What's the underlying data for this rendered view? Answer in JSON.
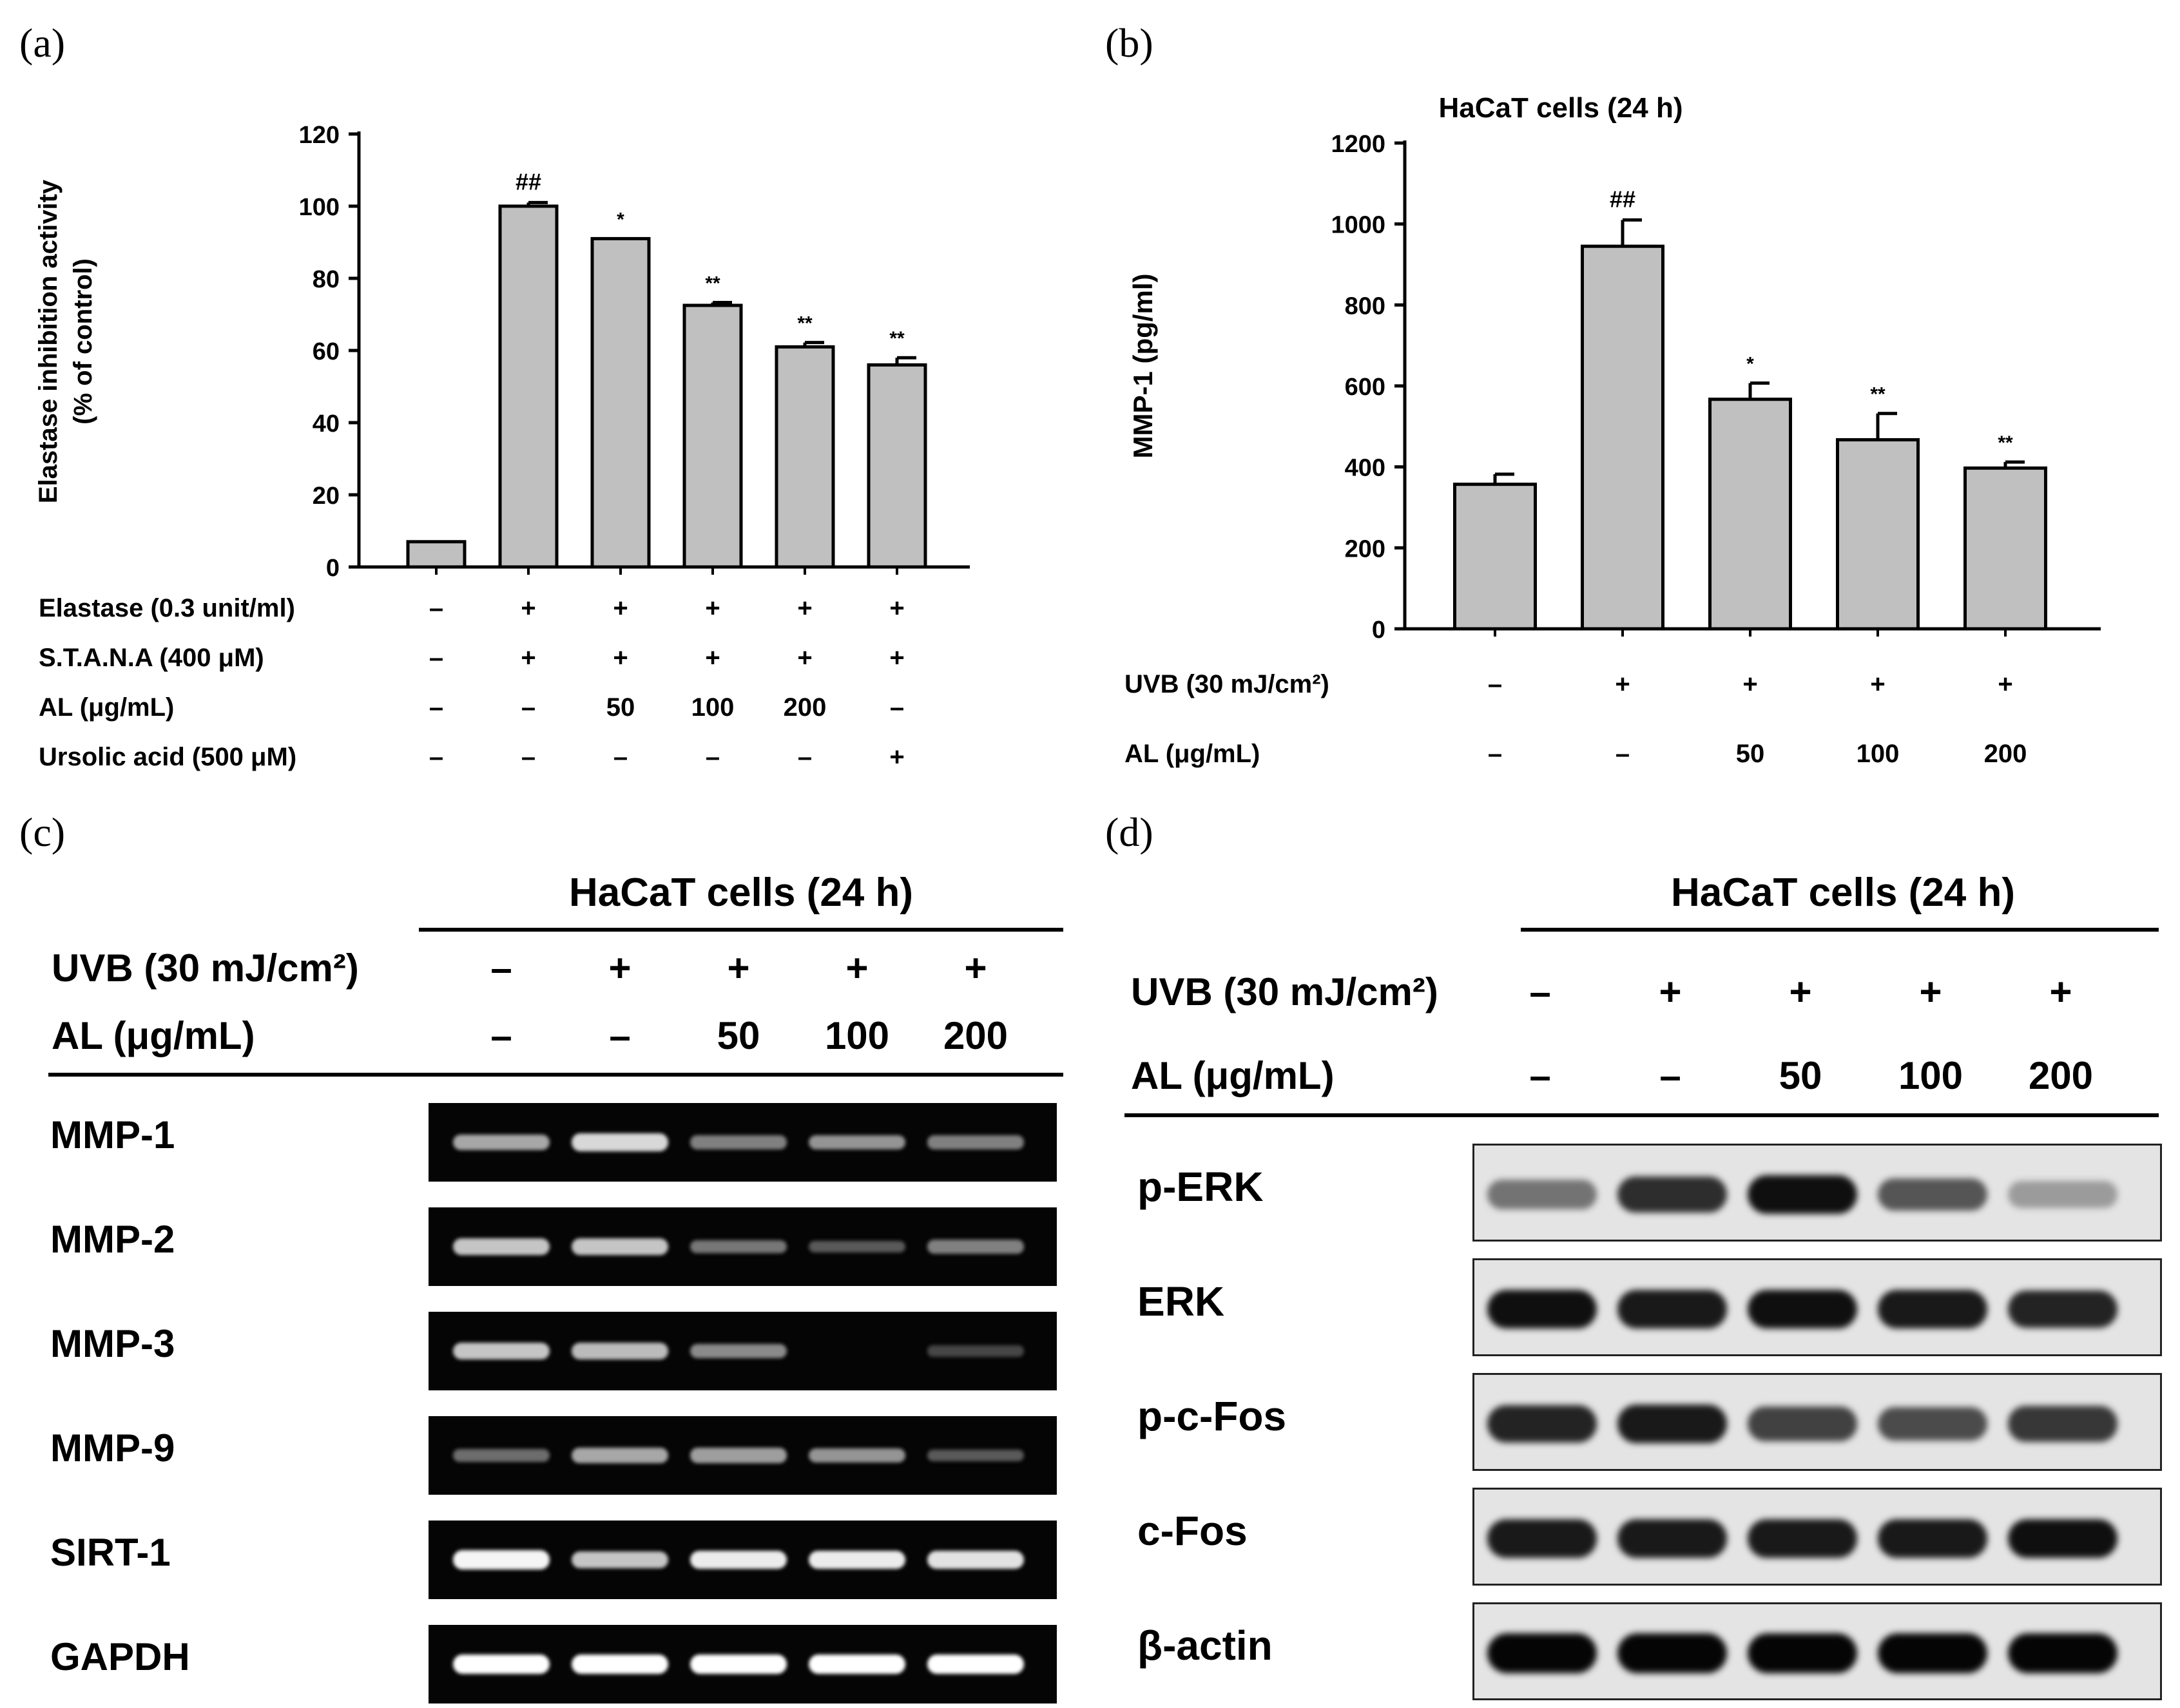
{
  "panels": {
    "a": {
      "label": "(a)"
    },
    "b": {
      "label": "(b)"
    },
    "c": {
      "label": "(c)"
    },
    "d": {
      "label": "(d)"
    }
  },
  "chart_data": [
    {
      "type": "bar",
      "panel": "a",
      "title": "",
      "ylabel_line1": "Elastase inhibition activity",
      "ylabel_line2": "(% of control)",
      "ylim": [
        0,
        120
      ],
      "yticks": [
        "0",
        "20",
        "40",
        "60",
        "80",
        "100",
        "120"
      ],
      "values": [
        7,
        100,
        91,
        72.5,
        61,
        56
      ],
      "errors": [
        0,
        1,
        0,
        0.8,
        1.2,
        2
      ],
      "annotations": [
        "",
        "##",
        "*",
        "**",
        "**",
        "**"
      ],
      "bar_color": "#c0c0c0",
      "conditions": [
        {
          "label": "Elastase (0.3 unit/ml)",
          "values": [
            "–",
            "+",
            "+",
            "+",
            "+",
            "+"
          ]
        },
        {
          "label": "S.T.A.N.A (400 μM)",
          "values": [
            "–",
            "+",
            "+",
            "+",
            "+",
            "+"
          ]
        },
        {
          "label": "AL (μg/mL)",
          "values": [
            "–",
            "–",
            "50",
            "100",
            "200",
            "–"
          ]
        },
        {
          "label": "Ursolic acid (500 μM)",
          "values": [
            "–",
            "–",
            "–",
            "–",
            "–",
            "+"
          ]
        }
      ]
    },
    {
      "type": "bar",
      "panel": "b",
      "title": "HaCaT cells (24 h)",
      "ylabel": "MMP-1 (pg/ml)",
      "ylim": [
        0,
        1200
      ],
      "yticks": [
        "0",
        "200",
        "400",
        "600",
        "800",
        "1000",
        "1200"
      ],
      "values": [
        357,
        945,
        567,
        467,
        397
      ],
      "errors": [
        25,
        65,
        40,
        65,
        15
      ],
      "annotations": [
        "",
        "##",
        "*",
        "**",
        "**"
      ],
      "bar_color": "#c0c0c0",
      "conditions": [
        {
          "label": "UVB (30 mJ/cm²)",
          "values": [
            "–",
            "+",
            "+",
            "+",
            "+"
          ]
        },
        {
          "label": "AL (μg/mL)",
          "values": [
            "–",
            "–",
            "50",
            "100",
            "200"
          ]
        }
      ]
    }
  ],
  "gel_c": {
    "title": "HaCaT cells (24 h)",
    "conditions": [
      {
        "label": "UVB (30 mJ/cm²)",
        "values": [
          "–",
          "+",
          "+",
          "+",
          "+"
        ]
      },
      {
        "label": "AL (μg/mL)",
        "values": [
          "–",
          "–",
          "50",
          "100",
          "200"
        ]
      }
    ],
    "rows": [
      {
        "label": "MMP-1",
        "intensity": [
          0.55,
          0.8,
          0.35,
          0.45,
          0.35
        ]
      },
      {
        "label": "MMP-2",
        "intensity": [
          0.7,
          0.7,
          0.3,
          0.15,
          0.35
        ]
      },
      {
        "label": "MMP-3",
        "intensity": [
          0.7,
          0.65,
          0.4,
          0.0,
          0.05
        ]
      },
      {
        "label": "MMP-9",
        "intensity": [
          0.25,
          0.55,
          0.5,
          0.45,
          0.15
        ]
      },
      {
        "label": "SIRT-1",
        "intensity": [
          0.95,
          0.7,
          0.9,
          0.9,
          0.85
        ]
      },
      {
        "label": "GAPDH",
        "intensity": [
          1.0,
          1.0,
          1.0,
          1.0,
          1.0
        ]
      }
    ]
  },
  "blot_d": {
    "title": "HaCaT cells (24 h)",
    "conditions": [
      {
        "label": "UVB (30 mJ/cm²)",
        "values": [
          "–",
          "+",
          "+",
          "+",
          "+"
        ]
      },
      {
        "label": "AL (μg/mL)",
        "values": [
          "–",
          "–",
          "50",
          "100",
          "200"
        ]
      }
    ],
    "rows": [
      {
        "label": "p-ERK",
        "intensity": [
          0.45,
          0.8,
          0.95,
          0.6,
          0.25
        ]
      },
      {
        "label": "ERK",
        "intensity": [
          0.95,
          0.9,
          0.95,
          0.9,
          0.85
        ]
      },
      {
        "label": "p-c-Fos",
        "intensity": [
          0.85,
          0.9,
          0.7,
          0.65,
          0.75
        ]
      },
      {
        "label": "c-Fos",
        "intensity": [
          0.9,
          0.9,
          0.9,
          0.9,
          0.95
        ]
      },
      {
        "label": "β-actin",
        "intensity": [
          1.0,
          1.0,
          1.0,
          1.0,
          1.0
        ]
      }
    ]
  }
}
